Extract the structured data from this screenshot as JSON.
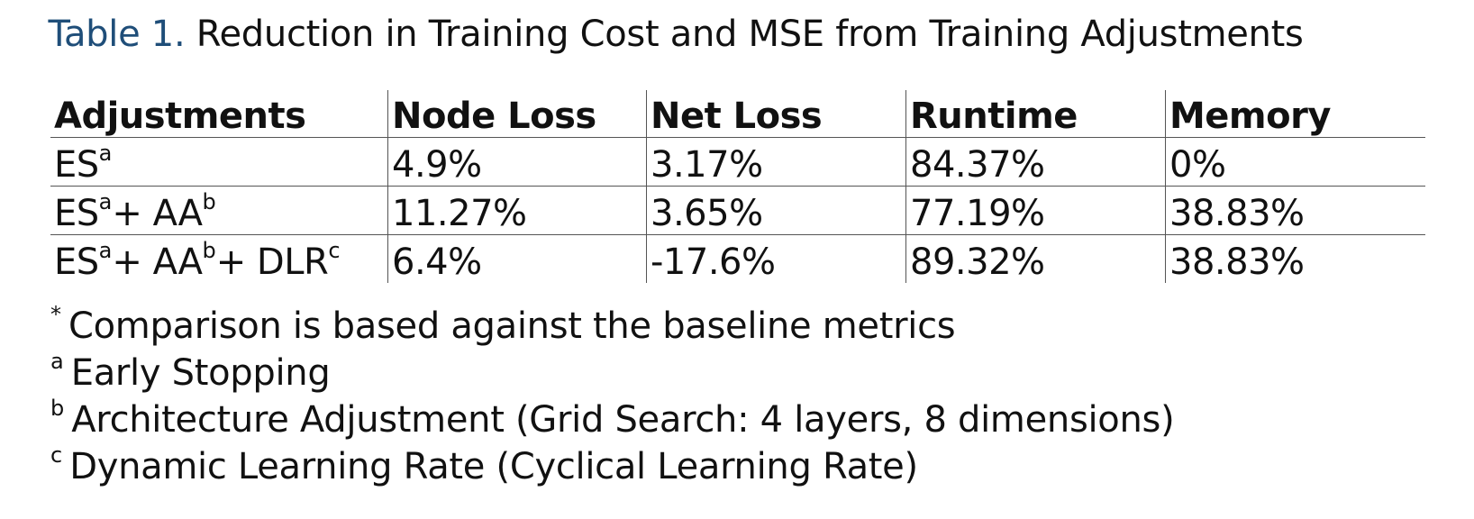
{
  "caption": {
    "label": "Table 1.",
    "text": "Reduction in Training Cost and MSE from Training Adjustments"
  },
  "table": {
    "headers": [
      "Adjustments",
      "Node Loss",
      "Net Loss",
      "Runtime",
      "Memory"
    ],
    "rows": [
      {
        "adjustment": {
          "p1": "ES",
          "s1": "a"
        },
        "values": [
          "4.9%",
          "3.17%",
          "84.37%",
          "0%"
        ]
      },
      {
        "adjustment": {
          "p1": "ES",
          "s1": "a",
          "p2": "+ AA",
          "s2": "b"
        },
        "values": [
          "11.27%",
          "3.65%",
          "77.19%",
          "38.83%"
        ]
      },
      {
        "adjustment": {
          "p1": "ES",
          "s1": "a",
          "p2": "+ AA",
          "s2": "b",
          "p3": "+ DLR",
          "s3": "c"
        },
        "values": [
          "6.4%",
          "-17.6%",
          "89.32%",
          "38.83%"
        ]
      }
    ]
  },
  "notes": [
    {
      "marker": "*",
      "text": "Comparison is based against the baseline metrics"
    },
    {
      "marker": "a",
      "text": "Early Stopping"
    },
    {
      "marker": "b",
      "text": "Architecture Adjustment (Grid Search: 4 layers, 8 dimensions)"
    },
    {
      "marker": "c",
      "text": "Dynamic Learning Rate (Cyclical Learning Rate)"
    }
  ]
}
